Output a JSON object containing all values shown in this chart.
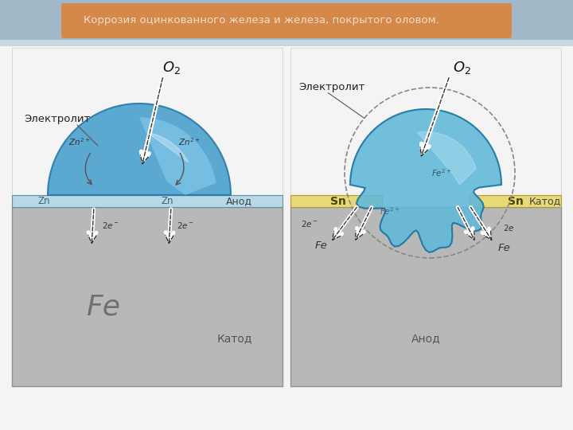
{
  "title": "Коррозия оцинкованного железа и железа, покрытого оловом.",
  "title_bg": "#d4894a",
  "title_color": "#f0e0c8",
  "header_bar_color": "#a0b8c8",
  "bg_color": "#f4f4f4",
  "fe_color": "#b8b8b8",
  "zn_color": "#b8d8e8",
  "sn_color": "#e8d878",
  "water_color": "#5ab0d5",
  "water_color_light": "#a0d8f0",
  "left_electrolyte": "Электролит",
  "right_electrolyte": "Электролит",
  "left_anode": "Анод",
  "left_cathode": "Катод",
  "right_anode": "Анод",
  "right_cathode": "Катод",
  "fe_label": "Fe",
  "zn_label": "Zn",
  "sn_label": "Sn"
}
